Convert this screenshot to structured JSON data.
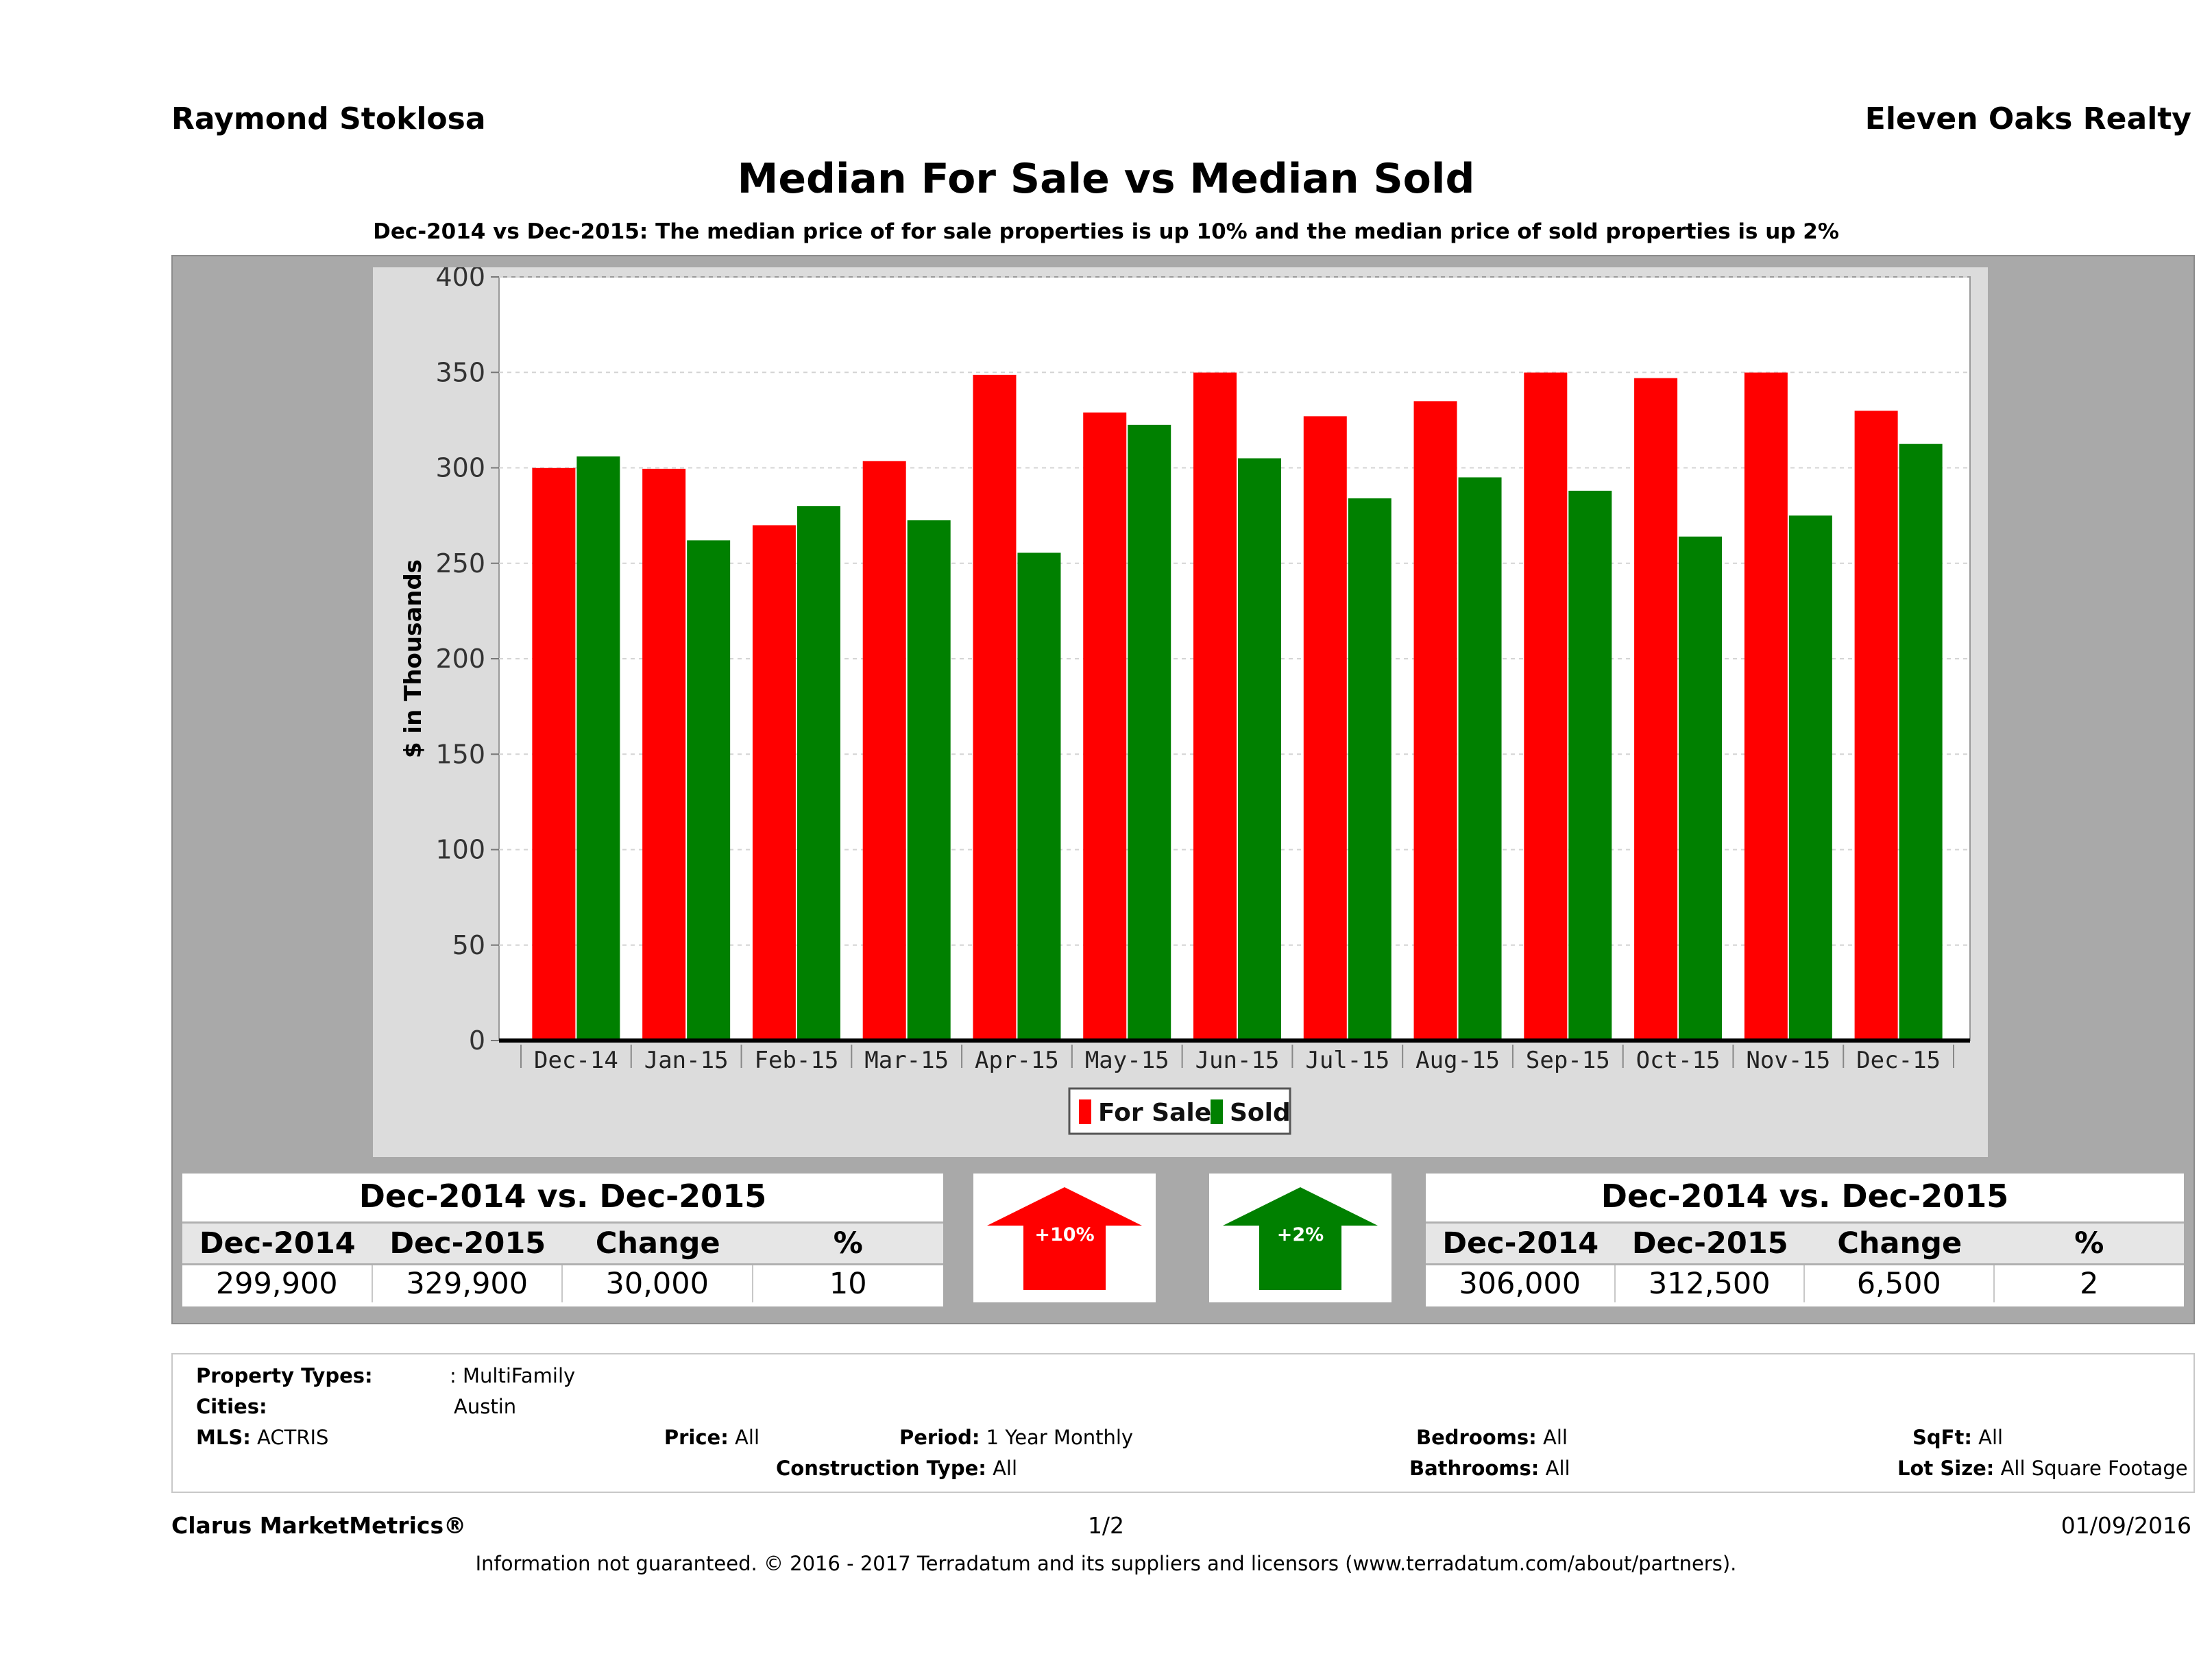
{
  "header": {
    "agent": "Raymond Stoklosa",
    "brokerage": "Eleven Oaks Realty",
    "title": "Median For Sale vs Median Sold",
    "subtitle": "Dec-2014 vs Dec-2015: The median price of for sale properties is up 10% and the median price of sold properties is up 2%"
  },
  "chart_data": {
    "type": "bar",
    "title": "Median For Sale vs Median Sold",
    "xlabel": "",
    "ylabel": "$ in Thousands",
    "ylim": [
      0,
      400
    ],
    "yticks": [
      0,
      50,
      100,
      150,
      200,
      250,
      300,
      350,
      400
    ],
    "grid": true,
    "legend_position": "bottom-center",
    "categories": [
      "Dec-14",
      "Jan-15",
      "Feb-15",
      "Mar-15",
      "Apr-15",
      "May-15",
      "Jun-15",
      "Jul-15",
      "Aug-15",
      "Sep-15",
      "Oct-15",
      "Nov-15",
      "Dec-15"
    ],
    "series": [
      {
        "name": "For Sale",
        "color": "#ff0000",
        "values": [
          299.9,
          299.5,
          269.9,
          303.5,
          348.7,
          329.0,
          349.9,
          327.0,
          334.9,
          349.9,
          347.0,
          349.9,
          329.9
        ]
      },
      {
        "name": "Sold",
        "color": "#008000",
        "values": [
          306.0,
          262.0,
          280.0,
          272.5,
          255.5,
          322.5,
          305.0,
          284.0,
          295.0,
          288.0,
          264.0,
          275.0,
          312.5
        ]
      }
    ]
  },
  "for_sale_table": {
    "title": "Dec-2014 vs. Dec-2015",
    "headers": [
      "Dec-2014",
      "Dec-2015",
      "Change",
      "%"
    ],
    "values": [
      "299,900",
      "329,900",
      "30,000",
      "10"
    ]
  },
  "sold_table": {
    "title": "Dec-2014 vs. Dec-2015",
    "headers": [
      "Dec-2014",
      "Dec-2015",
      "Change",
      "%"
    ],
    "values": [
      "306,000",
      "312,500",
      "6,500",
      "2"
    ]
  },
  "for_sale_change": {
    "label": "+10%",
    "direction": "up",
    "color": "#ff0000"
  },
  "sold_change": {
    "label": "+2%",
    "direction": "up",
    "color": "#008000"
  },
  "criteria": {
    "property_types_label": "Property Types:",
    "property_types": ": MultiFamily",
    "cities_label": "Cities:",
    "cities": "Austin",
    "mls_label": "MLS:",
    "mls": "ACTRIS",
    "price_label": "Price:",
    "price": "All",
    "period_label": "Period:",
    "period": "1 Year Monthly",
    "bedrooms_label": "Bedrooms:",
    "bedrooms": "All",
    "sqft_label": "SqFt:",
    "sqft": "All",
    "construction_label": "Construction Type:",
    "construction": "All",
    "bathrooms_label": "Bathrooms:",
    "bathrooms": "All",
    "lot_size_label": "Lot Size:",
    "lot_size": "All Square Footage"
  },
  "footer": {
    "brand": "Clarus MarketMetrics®",
    "page": "1/2",
    "date": "01/09/2016",
    "disclaimer": "Information not guaranteed. © 2016 - 2017 Terradatum and its suppliers and licensors (www.terradatum.com/about/partners)."
  }
}
